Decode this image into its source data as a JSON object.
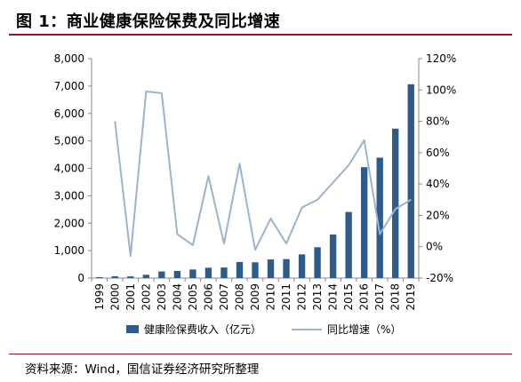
{
  "figure": {
    "title": "图 1：商业健康保险保费及同比增速",
    "source": "资料来源：Wind，国信证券经济研究所整理"
  },
  "colors": {
    "bar": "#2e5b8a",
    "line": "#9bb3cf",
    "rule": "#8b1a1a",
    "axis": "#888888"
  },
  "chart_data": {
    "type": "bar",
    "categories": [
      "1999",
      "2000",
      "2001",
      "2002",
      "2003",
      "2004",
      "2005",
      "2006",
      "2007",
      "2008",
      "2009",
      "2010",
      "2011",
      "2012",
      "2013",
      "2014",
      "2015",
      "2016",
      "2017",
      "2018",
      "2019"
    ],
    "series": [
      {
        "name": "健康险保费收入（亿元）",
        "type": "bar",
        "axis": "left",
        "values": [
          35,
          65,
          62,
          120,
          240,
          260,
          312,
          377,
          384,
          586,
          574,
          678,
          692,
          863,
          1123,
          1587,
          2410,
          4042,
          4389,
          5448,
          7066
        ]
      },
      {
        "name": "同比增速（%）",
        "type": "line",
        "axis": "right",
        "values": [
          null,
          80,
          -6,
          99,
          98,
          8,
          1,
          45,
          2,
          53,
          -2,
          18,
          2,
          25,
          30,
          41,
          52,
          68,
          8,
          24,
          30
        ]
      }
    ],
    "left_axis": {
      "min": 0,
      "max": 8000,
      "step": 1000,
      "ticks": [
        "0",
        "1,000",
        "2,000",
        "3,000",
        "4,000",
        "5,000",
        "6,000",
        "7,000",
        "8,000"
      ]
    },
    "right_axis": {
      "min": -20,
      "max": 120,
      "step": 20,
      "ticks": [
        "-20%",
        "0%",
        "20%",
        "40%",
        "60%",
        "80%",
        "100%",
        "120%"
      ]
    },
    "legend": [
      "健康险保费收入（亿元）",
      "同比增速（%）"
    ],
    "legend_position": "bottom",
    "grid": false
  }
}
